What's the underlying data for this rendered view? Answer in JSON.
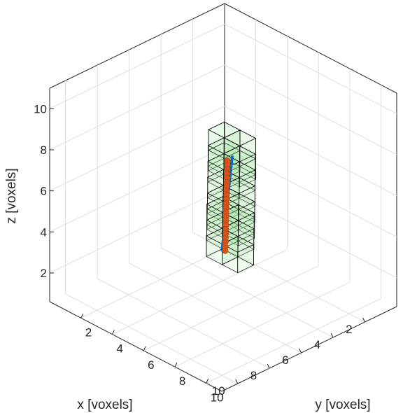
{
  "chart_data": {
    "type": "scatter",
    "projection": "3d",
    "grid": true,
    "axes": {
      "x": {
        "label": "x [voxels]",
        "range": [
          0,
          11
        ],
        "ticks": [
          2,
          4,
          6,
          8,
          10
        ],
        "tick_labels": [
          "2",
          "4",
          "6",
          "8",
          "10"
        ]
      },
      "y": {
        "label": "y [voxels]",
        "range": [
          0,
          11
        ],
        "ticks": [
          2,
          4,
          6,
          8,
          10
        ],
        "tick_labels": [
          "2",
          "4",
          "6",
          "8",
          "10"
        ]
      },
      "z": {
        "label": "z [voxels]",
        "range": [
          0.6,
          11
        ],
        "ticks": [
          2,
          4,
          6,
          8,
          10
        ],
        "tick_labels": [
          "2",
          "4",
          "6",
          "8",
          "10"
        ]
      }
    },
    "line": {
      "color": "#0072BD",
      "start": [
        1.0,
        1.5,
        4.5
      ],
      "end": [
        10.0,
        10.0,
        6.7
      ]
    },
    "points": {
      "color": "#D95319",
      "values": [
        [
          1.4,
          1.6,
          4.5
        ],
        [
          1.8,
          2.0,
          4.6
        ],
        [
          2.2,
          2.4,
          4.7
        ],
        [
          2.6,
          2.8,
          4.8
        ],
        [
          3.0,
          3.2,
          4.9
        ],
        [
          3.4,
          3.6,
          5.0
        ],
        [
          3.8,
          4.0,
          5.1
        ],
        [
          4.2,
          4.4,
          5.2
        ],
        [
          4.6,
          4.8,
          5.3
        ],
        [
          5.0,
          5.2,
          5.4
        ],
        [
          5.4,
          5.6,
          5.5
        ],
        [
          5.8,
          6.0,
          5.6
        ],
        [
          6.2,
          6.4,
          5.7
        ],
        [
          6.6,
          6.8,
          5.8
        ],
        [
          7.0,
          7.2,
          5.9
        ],
        [
          7.4,
          7.6,
          6.0
        ],
        [
          7.8,
          8.0,
          6.1
        ],
        [
          8.2,
          8.4,
          6.2
        ],
        [
          8.6,
          8.8,
          6.3
        ],
        [
          9.0,
          9.2,
          6.4
        ],
        [
          9.4,
          9.6,
          6.5
        ],
        [
          9.8,
          10.0,
          6.6
        ]
      ]
    },
    "voxels": {
      "edge_color": "#000000",
      "face_color": "#A6E8A6",
      "cells": [
        [
          1,
          1,
          4
        ],
        [
          1,
          2,
          4
        ],
        [
          1,
          1,
          5
        ],
        [
          1,
          2,
          5
        ],
        [
          2,
          2,
          5
        ],
        [
          2,
          3,
          5
        ],
        [
          3,
          3,
          5
        ],
        [
          3,
          4,
          5
        ],
        [
          4,
          4,
          5
        ],
        [
          4,
          5,
          5
        ],
        [
          5,
          5,
          5
        ],
        [
          5,
          6,
          5
        ],
        [
          6,
          6,
          5
        ],
        [
          6,
          7,
          5
        ],
        [
          7,
          7,
          6
        ],
        [
          7,
          8,
          6
        ],
        [
          8,
          8,
          6
        ],
        [
          8,
          9,
          6
        ],
        [
          9,
          9,
          6
        ],
        [
          9,
          10,
          6
        ]
      ]
    }
  }
}
